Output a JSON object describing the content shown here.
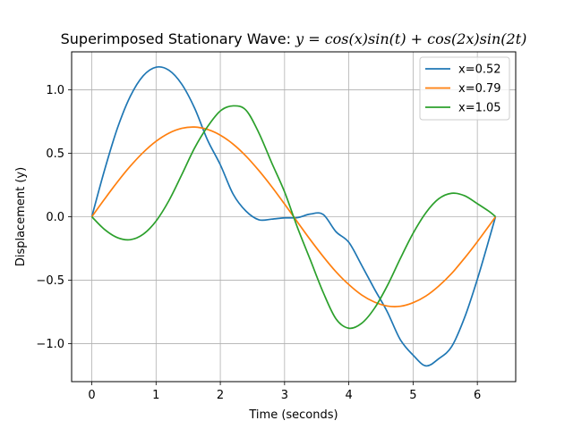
{
  "chart_data": {
    "type": "line",
    "title_prefix": "Superimposed Stationary Wave: ",
    "title_equation": "y = cos(x)sin(t) + cos(2x)sin(2t)",
    "xlabel": "Time (seconds)",
    "ylabel": "Displacement (y)",
    "xlim": [
      -0.314,
      6.597
    ],
    "ylim": [
      -1.3,
      1.3
    ],
    "xticks": [
      0,
      1,
      2,
      3,
      4,
      5,
      6
    ],
    "xtick_labels": [
      "0",
      "1",
      "2",
      "3",
      "4",
      "5",
      "6"
    ],
    "yticks": [
      -1.0,
      -0.5,
      0.0,
      0.5,
      1.0
    ],
    "ytick_labels": [
      "−1.0",
      "−0.5",
      "0.0",
      "0.5",
      "1.0"
    ],
    "grid": true,
    "legend_position": "upper-right",
    "x": [
      0,
      0.2,
      0.4,
      0.6,
      0.8,
      1.0,
      1.2,
      1.4,
      1.6,
      1.8,
      2.0,
      2.2,
      2.4,
      2.6,
      2.8,
      3.0,
      3.2,
      3.4,
      3.6,
      3.8,
      4.0,
      4.2,
      4.4,
      4.6,
      4.8,
      5.0,
      5.2,
      5.4,
      5.6,
      5.8,
      6.0,
      6.2,
      6.283
    ],
    "series": [
      {
        "name": "x=0.52",
        "color": "#1f77b4",
        "values": [
          0,
          0.371,
          0.7,
          0.95,
          1.111,
          1.179,
          1.155,
          1.045,
          0.856,
          0.606,
          0.41,
          0.178,
          0.044,
          -0.024,
          -0.019,
          -0.009,
          -0.007,
          0.021,
          0.018,
          -0.118,
          -0.202,
          -0.383,
          -0.571,
          -0.751,
          -0.968,
          -1.091,
          -1.176,
          -1.119,
          -1.024,
          -0.797,
          -0.493,
          -0.147,
          0
        ]
      },
      {
        "name": "x=0.79",
        "color": "#ff7f0e",
        "values": [
          0,
          0.14,
          0.275,
          0.399,
          0.507,
          0.595,
          0.659,
          0.697,
          0.707,
          0.688,
          0.643,
          0.572,
          0.478,
          0.364,
          0.237,
          0.1,
          -0.041,
          -0.181,
          -0.313,
          -0.434,
          -0.535,
          -0.617,
          -0.673,
          -0.704,
          -0.706,
          -0.678,
          -0.625,
          -0.546,
          -0.447,
          -0.327,
          -0.197,
          -0.059,
          0
        ]
      },
      {
        "name": "x=1.05",
        "color": "#2ca02c",
        "values": [
          0,
          -0.101,
          -0.165,
          -0.181,
          -0.138,
          -0.034,
          0.127,
          0.331,
          0.542,
          0.709,
          0.834,
          0.874,
          0.84,
          0.661,
          0.425,
          0.196,
          -0.084,
          -0.339,
          -0.595,
          -0.805,
          -0.879,
          -0.84,
          -0.721,
          -0.543,
          -0.331,
          -0.131,
          0.032,
          0.142,
          0.185,
          0.166,
          0.103,
          0.036,
          0
        ]
      }
    ]
  }
}
